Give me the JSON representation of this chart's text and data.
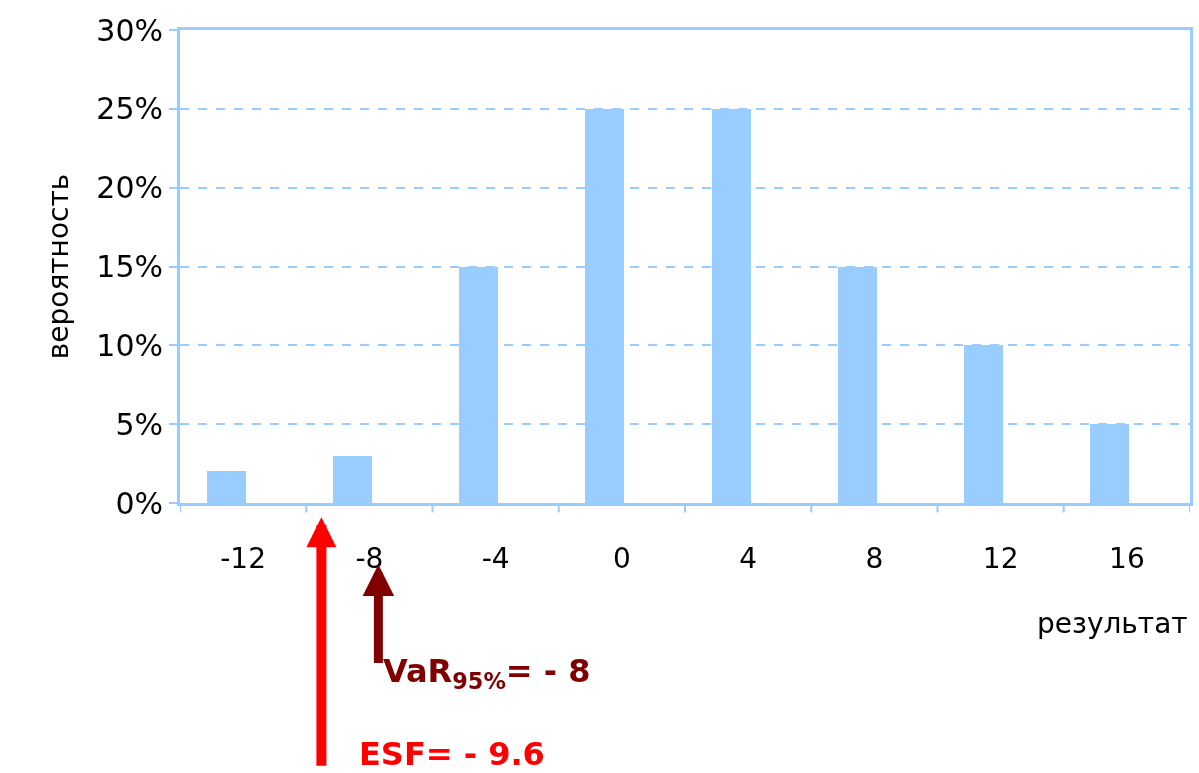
{
  "chart_data": {
    "type": "bar",
    "xlabel": "результат",
    "ylabel": "вероятность",
    "categories": [
      "-12",
      "-8",
      "-4",
      "0",
      "4",
      "8",
      "12",
      "16"
    ],
    "values": [
      2,
      3,
      15,
      25,
      25,
      15,
      10,
      5
    ],
    "color": "#99ccff",
    "ylim": [
      0,
      30
    ],
    "yticks": [
      {
        "value": 0,
        "label": "0%"
      },
      {
        "value": 5,
        "label": "5%"
      },
      {
        "value": 10,
        "label": "10%"
      },
      {
        "value": 15,
        "label": "15%"
      },
      {
        "value": 20,
        "label": "20%"
      },
      {
        "value": 25,
        "label": "25%"
      },
      {
        "value": 30,
        "label": "30%"
      }
    ],
    "grid": "y",
    "annotations": [
      "VaR$_{95%}$= - 8",
      "ESF= - 9.6"
    ]
  }
}
